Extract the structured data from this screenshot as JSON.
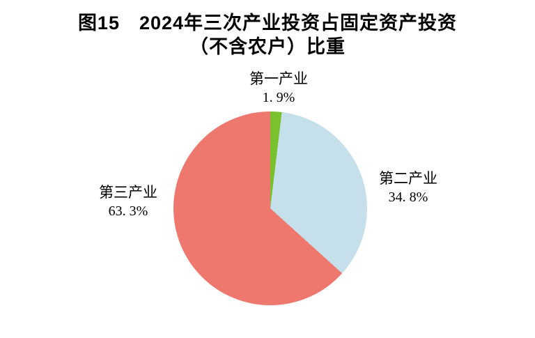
{
  "header": {
    "line1": "图15　2024年三次产业投资占固定资产投资",
    "line2": "（不含农户）比重"
  },
  "chart_data": {
    "type": "pie",
    "title": "图15 2024年三次产业投资占固定资产投资（不含农户）比重",
    "start_angle_deg": 0,
    "direction": "clockwise",
    "legend_position": "none",
    "slices": [
      {
        "label": "第一产业",
        "value": 1.9,
        "value_text": "1. 9%",
        "color": "#7ac22d"
      },
      {
        "label": "第二产业",
        "value": 34.8,
        "value_text": "34. 8%",
        "color": "#c5e0ea"
      },
      {
        "label": "第三产业",
        "value": 63.3,
        "value_text": "63. 3%",
        "color": "#ee786e"
      }
    ]
  }
}
